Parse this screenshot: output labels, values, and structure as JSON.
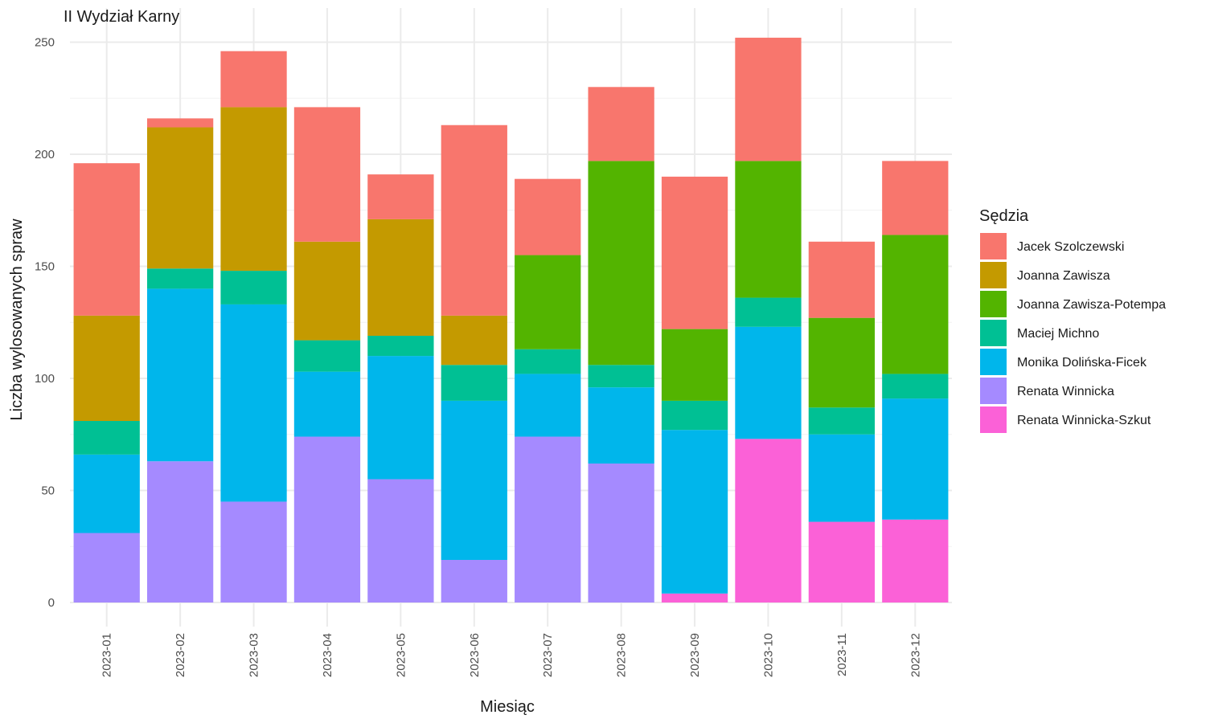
{
  "chart_data": {
    "type": "bar",
    "stacked": true,
    "title": "II Wydział Karny",
    "xlabel": "Miesiąc",
    "ylabel": "Liczba wylosowanych spraw",
    "ylim": [
      0,
      252
    ],
    "yticks": [
      0,
      50,
      100,
      150,
      200,
      250
    ],
    "grid": true,
    "legend_title": "Sędzia",
    "legend_position": "right",
    "categories": [
      "2023-01",
      "2023-02",
      "2023-03",
      "2023-04",
      "2023-05",
      "2023-06",
      "2023-07",
      "2023-08",
      "2023-09",
      "2023-10",
      "2023-11",
      "2023-12"
    ],
    "series": [
      {
        "name": "Jacek Szolczewski",
        "color": "#F8766D",
        "values": [
          68,
          4,
          25,
          60,
          20,
          85,
          34,
          33,
          68,
          55,
          34,
          33
        ]
      },
      {
        "name": "Joanna Zawisza",
        "color": "#C49A00",
        "values": [
          47,
          63,
          73,
          44,
          52,
          22,
          0,
          0,
          0,
          0,
          0,
          0
        ]
      },
      {
        "name": "Joanna Zawisza-Potempa",
        "color": "#53B400",
        "values": [
          0,
          0,
          0,
          0,
          0,
          0,
          42,
          91,
          32,
          61,
          40,
          62
        ]
      },
      {
        "name": "Maciej Michno",
        "color": "#00C094",
        "values": [
          15,
          9,
          15,
          14,
          9,
          16,
          11,
          10,
          13,
          13,
          12,
          11
        ]
      },
      {
        "name": "Monika Dolińska-Ficek",
        "color": "#00B6EB",
        "values": [
          35,
          77,
          88,
          29,
          55,
          71,
          28,
          34,
          73,
          50,
          39,
          54
        ]
      },
      {
        "name": "Renata Winnicka",
        "color": "#A58AFF",
        "values": [
          31,
          63,
          45,
          74,
          55,
          19,
          74,
          62,
          0,
          0,
          0,
          0
        ]
      },
      {
        "name": "Renata Winnicka-Szkut",
        "color": "#FB61D7",
        "values": [
          0,
          0,
          0,
          0,
          0,
          0,
          0,
          0,
          4,
          73,
          36,
          37
        ]
      }
    ]
  }
}
